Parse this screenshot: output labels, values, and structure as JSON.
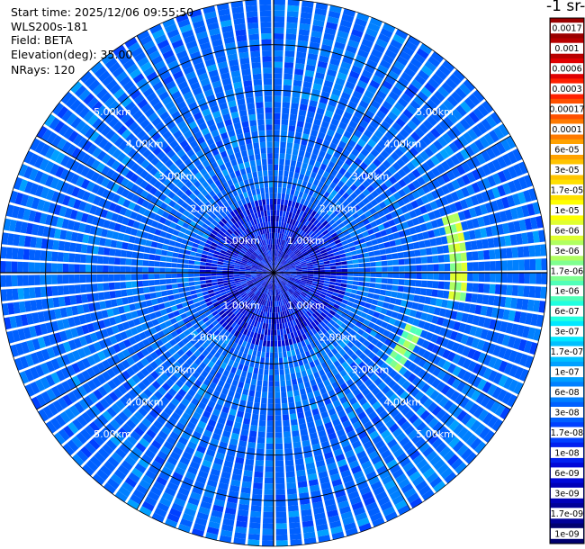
{
  "header": {
    "start_time": "Start time: 2025/12/06 09:55:50",
    "instrument": "WLS200s-181",
    "field": "Field: BETA",
    "elevation": "Elevation(deg): 35.00",
    "nrays": "NRays: 120"
  },
  "colorbar": {
    "title_fragment": "-1 sr-",
    "labels": [
      "0.0017",
      "0.001",
      "0.0006",
      "0.0003",
      "0.00017",
      "0.0001",
      "6e-05",
      "3e-05",
      "1.7e-05",
      "1e-05",
      "6e-06",
      "3e-06",
      "1.7e-06",
      "1e-06",
      "6e-07",
      "3e-07",
      "1.7e-07",
      "1e-07",
      "6e-08",
      "3e-08",
      "1.7e-08",
      "1e-08",
      "6e-09",
      "3e-09",
      "1.7e-09",
      "1e-09"
    ],
    "colors": [
      "#9b0000",
      "#b80000",
      "#e00000",
      "#ff2000",
      "#ff5000",
      "#ff7a00",
      "#ffa200",
      "#ffc400",
      "#ffe000",
      "#ffff00",
      "#e0ff30",
      "#b0ff60",
      "#80ff90",
      "#50ffb8",
      "#20ffe0",
      "#00e8ff",
      "#00c0ff",
      "#00a0ff",
      "#0080ff",
      "#0060ff",
      "#0040ff",
      "#0020f0",
      "#0008d8",
      "#0000b8",
      "#000098",
      "#000070"
    ]
  },
  "chart_data": {
    "type": "ppi",
    "rays": 120,
    "max_range_km": 6.0,
    "range_rings": [
      {
        "radius_km": 1,
        "label": "1.00km"
      },
      {
        "radius_km": 2,
        "label": "2.00km"
      },
      {
        "radius_km": 3,
        "label": "3.00km"
      },
      {
        "radius_km": 4,
        "label": "4.00km"
      },
      {
        "radius_km": 5,
        "label": "5.00km"
      }
    ],
    "azimuth_lines_deg": [
      0,
      30,
      60,
      90,
      120,
      150,
      180,
      210,
      240,
      270,
      300,
      330
    ],
    "features": [
      {
        "description": "enhanced return arc",
        "azimuth_range_deg": [
          72,
          100
        ],
        "range_km": [
          3.85,
          4.25
        ],
        "level_index": 11
      },
      {
        "description": "enhanced return arc",
        "azimuth_range_deg": [
          112,
          128
        ],
        "range_km": [
          3.1,
          3.5
        ],
        "level_index": 12
      }
    ]
  }
}
